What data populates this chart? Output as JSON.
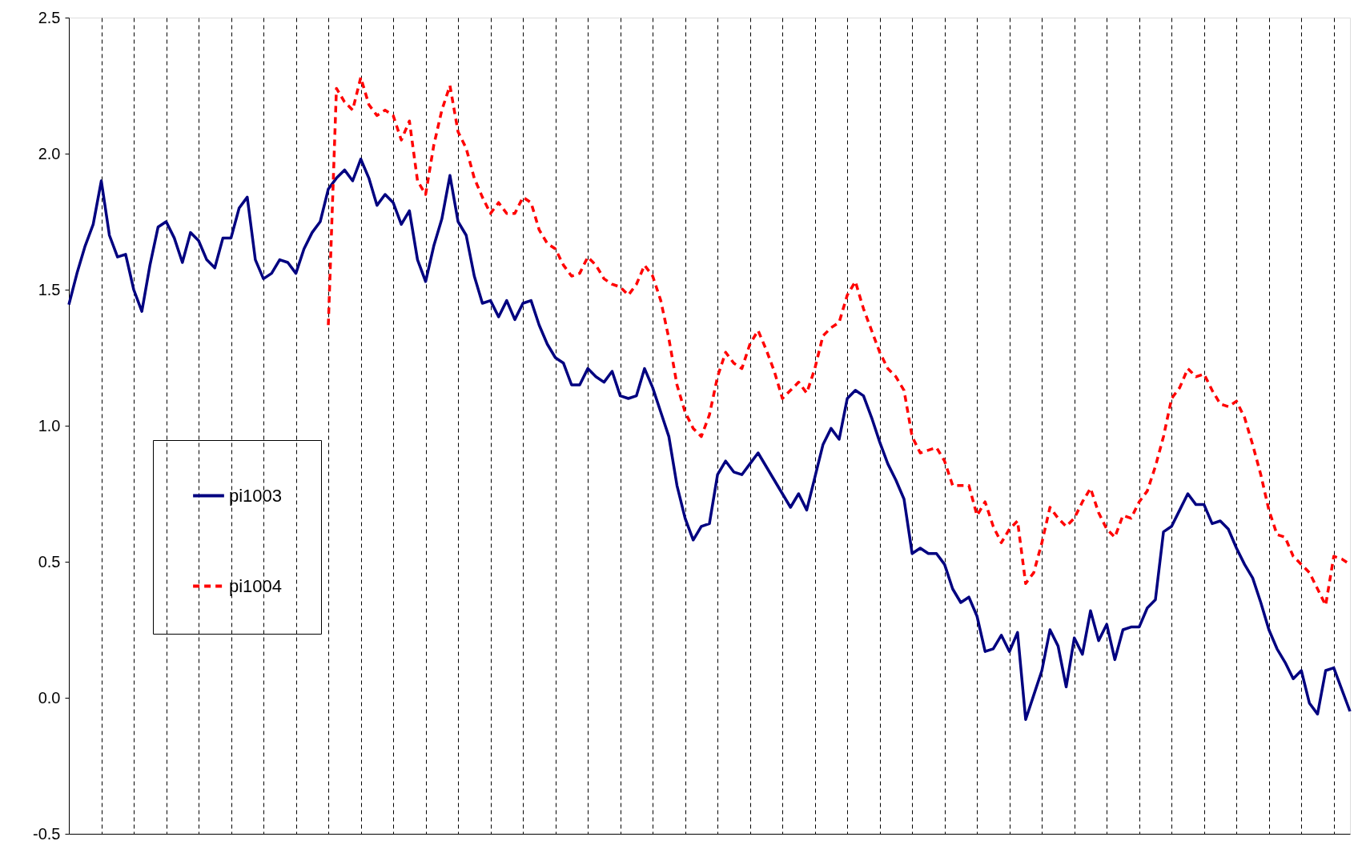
{
  "chart_data": {
    "type": "line",
    "categories": [
      null,
      null,
      null,
      null,
      null,
      null,
      null,
      null,
      null,
      null,
      null,
      null,
      null,
      null,
      null,
      null,
      null,
      null,
      null,
      null,
      null,
      null,
      null,
      null,
      null,
      null,
      null,
      null,
      null,
      null,
      null,
      null,
      null,
      null,
      null,
      null,
      null,
      null,
      null,
      null,
      null,
      null,
      null,
      null,
      null,
      null,
      null,
      null,
      null,
      null,
      null,
      null,
      null,
      null,
      null,
      null,
      null,
      null,
      null,
      null,
      null,
      null,
      null,
      null,
      null,
      null,
      null,
      null,
      null,
      null,
      null,
      null,
      null,
      null,
      null,
      null,
      null,
      null,
      null,
      null,
      null,
      null,
      null,
      null,
      null,
      null,
      null,
      null,
      null,
      null,
      null,
      null,
      null,
      null,
      null,
      null,
      null,
      null,
      null,
      null,
      null,
      null,
      null,
      null,
      null,
      null,
      null,
      null,
      null,
      null,
      null,
      null,
      null,
      null,
      null,
      null,
      null,
      null,
      null,
      null,
      null,
      null,
      null,
      null,
      null,
      null,
      null,
      null,
      null,
      null,
      null,
      null,
      null,
      null,
      null,
      null,
      null,
      null,
      null,
      null,
      null,
      null,
      null,
      null,
      null,
      null,
      null,
      null,
      null,
      null,
      null,
      null,
      null,
      null,
      null,
      null,
      null,
      null,
      null
    ],
    "ylim": [
      -0.5,
      2.5
    ],
    "yticks": [
      {
        "value": -0.5,
        "label": "-0.5"
      },
      {
        "value": 0,
        "label": "0.0"
      },
      {
        "value": 0.5,
        "label": "0.5"
      },
      {
        "value": 1,
        "label": "1.0"
      },
      {
        "value": 1.5,
        "label": "1.5"
      },
      {
        "value": 2,
        "label": "2.0"
      },
      {
        "value": 2.5,
        "label": "2.5"
      }
    ],
    "tick_labels": "y",
    "grid": "x",
    "legend": "left",
    "series": [
      {
        "name": "pi1003",
        "color": "#000080",
        "line_style": "solid",
        "values": [
          1.445,
          1.56,
          1.66,
          1.74,
          1.9,
          1.7,
          1.62,
          1.63,
          1.5,
          1.42,
          1.59,
          1.73,
          1.75,
          1.69,
          1.6,
          1.71,
          1.68,
          1.61,
          1.58,
          1.69,
          1.69,
          1.8,
          1.84,
          1.61,
          1.54,
          1.56,
          1.61,
          1.6,
          1.56,
          1.65,
          1.71,
          1.75,
          1.87,
          1.91,
          1.94,
          1.9,
          1.98,
          1.91,
          1.81,
          1.85,
          1.82,
          1.74,
          1.79,
          1.61,
          1.53,
          1.66,
          1.76,
          1.92,
          1.75,
          1.7,
          1.55,
          1.45,
          1.46,
          1.4,
          1.46,
          1.39,
          1.45,
          1.46,
          1.37,
          1.3,
          1.25,
          1.23,
          1.15,
          1.15,
          1.21,
          1.18,
          1.16,
          1.2,
          1.11,
          1.1,
          1.11,
          1.21,
          1.14,
          1.05,
          0.96,
          0.78,
          0.66,
          0.58,
          0.63,
          0.64,
          0.82,
          0.87,
          0.83,
          0.82,
          0.86,
          0.9,
          0.85,
          0.8,
          0.75,
          0.7,
          0.75,
          0.69,
          0.81,
          0.93,
          0.99,
          0.95,
          1.1,
          1.13,
          1.11,
          1.03,
          0.94,
          0.86,
          0.8,
          0.73,
          0.53,
          0.55,
          0.53,
          0.53,
          0.49,
          0.4,
          0.35,
          0.37,
          0.3,
          0.17,
          0.18,
          0.23,
          0.17,
          0.24,
          -0.08,
          0.01,
          0.1,
          0.25,
          0.19,
          0.04,
          0.22,
          0.16,
          0.32,
          0.21,
          0.27,
          0.14,
          0.25,
          0.26,
          0.26,
          0.33,
          0.36,
          0.61,
          0.63,
          0.69,
          0.75,
          0.71,
          0.71,
          0.64,
          0.65,
          0.62,
          0.55,
          0.49,
          0.44,
          0.35,
          0.25,
          0.18,
          0.13,
          0.07,
          0.1,
          -0.02,
          -0.06,
          0.1,
          0.11,
          0.03,
          -0.05
        ]
      },
      {
        "name": "pi1004",
        "color": "#ff0000",
        "line_style": "dashed",
        "values": [
          null,
          null,
          null,
          null,
          null,
          null,
          null,
          null,
          null,
          null,
          null,
          null,
          null,
          null,
          null,
          null,
          null,
          null,
          null,
          null,
          null,
          null,
          null,
          null,
          null,
          null,
          null,
          null,
          null,
          null,
          null,
          null,
          1.37,
          2.24,
          2.19,
          2.16,
          2.28,
          2.18,
          2.14,
          2.16,
          2.14,
          2.05,
          2.12,
          1.9,
          1.85,
          2.03,
          2.16,
          2.25,
          2.08,
          2.02,
          1.91,
          1.84,
          1.78,
          1.82,
          1.78,
          1.78,
          1.84,
          1.82,
          1.72,
          1.67,
          1.65,
          1.59,
          1.55,
          1.56,
          1.62,
          1.59,
          1.54,
          1.52,
          1.51,
          1.48,
          1.52,
          1.59,
          1.55,
          1.46,
          1.32,
          1.15,
          1.05,
          0.99,
          0.96,
          1.04,
          1.18,
          1.27,
          1.23,
          1.21,
          1.3,
          1.35,
          1.28,
          1.2,
          1.1,
          1.13,
          1.16,
          1.12,
          1.21,
          1.33,
          1.36,
          1.38,
          1.48,
          1.53,
          1.43,
          1.35,
          1.27,
          1.21,
          1.18,
          1.13,
          0.96,
          0.9,
          0.91,
          0.92,
          0.87,
          0.78,
          0.78,
          0.78,
          0.67,
          0.72,
          0.63,
          0.57,
          0.62,
          0.65,
          0.42,
          0.46,
          0.57,
          0.7,
          0.66,
          0.63,
          0.66,
          0.72,
          0.77,
          0.68,
          0.62,
          0.59,
          0.67,
          0.66,
          0.72,
          0.76,
          0.85,
          0.96,
          1.1,
          1.14,
          1.21,
          1.18,
          1.19,
          1.13,
          1.08,
          1.07,
          1.09,
          1.03,
          0.93,
          0.82,
          0.69,
          0.6,
          0.59,
          0.52,
          0.49,
          0.46,
          0.4,
          0.34,
          0.52,
          0.51,
          0.49
        ]
      }
    ]
  }
}
